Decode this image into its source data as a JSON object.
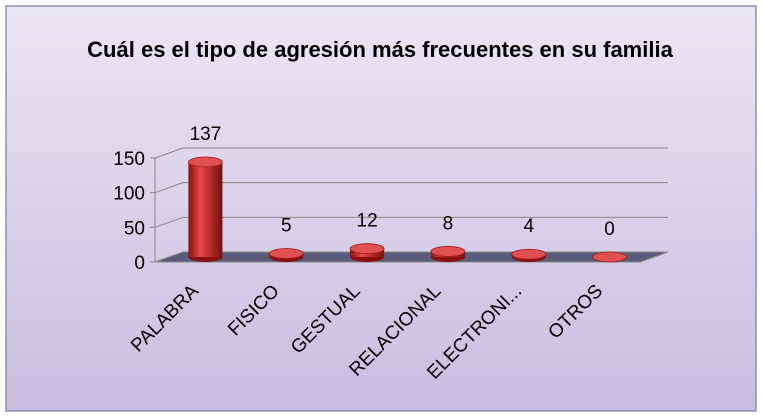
{
  "chart_data": {
    "type": "bar3d",
    "title": "Cuál es el tipo de agresión más frecuentes en su familia",
    "categories": [
      "PALABRA",
      "FISICO",
      "GESTUAL",
      "RELACIONAL",
      "ELECTRONI...",
      "OTROS"
    ],
    "values": [
      137,
      5,
      12,
      8,
      4,
      0
    ],
    "color": "#c0282a",
    "ylim": [
      0,
      150
    ],
    "yticks": [
      0,
      50,
      100,
      150
    ],
    "grid": true
  }
}
